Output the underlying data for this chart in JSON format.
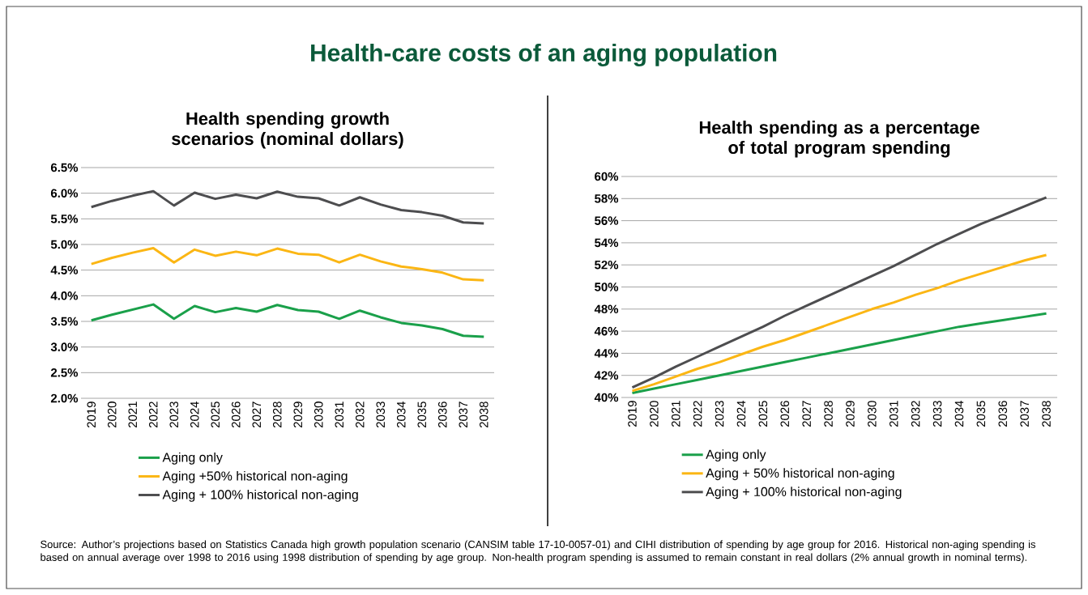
{
  "chart_data": [
    {
      "type": "other",
      "title": "Health-care costs of an aging population",
      "annotations": [
        "Source: Author’s projections based on Statistics Canada high growth population scenario (CANSIM table 17-10-0057-01) and CIHI distribution of spending by age group for 2016. Historical non-aging spending is based on annual average over 1998 to 2016 using 1998 distribution of spending by age group. Non-health program spending is assumed to remain constant in real dollars (2% annual growth in nominal terms)."
      ]
    },
    {
      "type": "line",
      "title": "Health spending growth scenarios (nominal dollars)",
      "categories": [
        "2019",
        "2020",
        "2021",
        "2022",
        "2023",
        "2024",
        "2025",
        "2026",
        "2027",
        "2028",
        "2029",
        "2030",
        "2031",
        "2032",
        "2033",
        "2034",
        "2035",
        "2036",
        "2037",
        "2038"
      ],
      "series": [
        {
          "name": "Aging only",
          "color": "#1aa04a",
          "values": [
            3.52,
            3.63,
            3.73,
            3.83,
            3.55,
            3.8,
            3.68,
            3.76,
            3.69,
            3.82,
            3.72,
            3.69,
            3.55,
            3.71,
            3.58,
            3.47,
            3.42,
            3.35,
            3.22,
            3.2
          ]
        },
        {
          "name": "Aging +50% historical non-aging",
          "color": "#fbb614",
          "values": [
            4.62,
            4.74,
            4.84,
            4.93,
            4.65,
            4.9,
            4.78,
            4.86,
            4.79,
            4.92,
            4.82,
            4.8,
            4.65,
            4.8,
            4.67,
            4.57,
            4.52,
            4.45,
            4.32,
            4.3
          ]
        },
        {
          "name": "Aging + 100% historical non-aging",
          "color": "#4d4d4f",
          "values": [
            5.73,
            5.85,
            5.95,
            6.04,
            5.76,
            6.01,
            5.89,
            5.97,
            5.9,
            6.03,
            5.93,
            5.9,
            5.76,
            5.92,
            5.78,
            5.67,
            5.63,
            5.56,
            5.43,
            5.41
          ]
        }
      ],
      "ylim": [
        2.0,
        6.5
      ],
      "yticks": [
        {
          "value": 2.0,
          "label": "2.0%"
        },
        {
          "value": 2.5,
          "label": "2.5%"
        },
        {
          "value": 3.0,
          "label": "3.0%"
        },
        {
          "value": 3.5,
          "label": "3.5%"
        },
        {
          "value": 4.0,
          "label": "4.0%"
        },
        {
          "value": 4.5,
          "label": "4.5%"
        },
        {
          "value": 5.0,
          "label": "5.0%"
        },
        {
          "value": 5.5,
          "label": "5.5%"
        },
        {
          "value": 6.0,
          "label": "6.0%"
        },
        {
          "value": 6.5,
          "label": "6.5%"
        }
      ],
      "grid": "y",
      "legend": "bottom"
    },
    {
      "type": "line",
      "title": "Health spending as a percentage of total program spending",
      "categories": [
        "2019",
        "2020",
        "2021",
        "2022",
        "2023",
        "2024",
        "2025",
        "2026",
        "2027",
        "2028",
        "2029",
        "2030",
        "2031",
        "2032",
        "2033",
        "2034",
        "2035",
        "2036",
        "2037",
        "2038"
      ],
      "series": [
        {
          "name": "Aging only",
          "color": "#1aa04a",
          "values": [
            40.4,
            40.8,
            41.2,
            41.6,
            42.0,
            42.4,
            42.8,
            43.2,
            43.6,
            44.0,
            44.4,
            44.8,
            45.2,
            45.6,
            46.0,
            46.4,
            46.7,
            47.0,
            47.3,
            47.6
          ]
        },
        {
          "name": "Aging + 50% historical non-aging",
          "color": "#fbb614",
          "values": [
            40.6,
            41.2,
            41.9,
            42.6,
            43.2,
            43.9,
            44.6,
            45.2,
            45.9,
            46.6,
            47.3,
            48.0,
            48.6,
            49.3,
            49.9,
            50.6,
            51.2,
            51.8,
            52.4,
            52.9
          ]
        },
        {
          "name": "Aging + 100% historical non-aging",
          "color": "#4d4d4f",
          "values": [
            40.9,
            41.8,
            42.8,
            43.7,
            44.6,
            45.5,
            46.4,
            47.4,
            48.3,
            49.2,
            50.1,
            51.0,
            51.9,
            52.9,
            53.9,
            54.8,
            55.7,
            56.5,
            57.3,
            58.1
          ]
        }
      ],
      "ylim": [
        40,
        60
      ],
      "yticks": [
        {
          "value": 40,
          "label": "40%"
        },
        {
          "value": 42,
          "label": "42%"
        },
        {
          "value": 44,
          "label": "44%"
        },
        {
          "value": 46,
          "label": "46%"
        },
        {
          "value": 48,
          "label": "48%"
        },
        {
          "value": 50,
          "label": "50%"
        },
        {
          "value": 52,
          "label": "52%"
        },
        {
          "value": 54,
          "label": "54%"
        },
        {
          "value": 56,
          "label": "56%"
        },
        {
          "value": 58,
          "label": "58%"
        },
        {
          "value": 60,
          "label": "60%"
        }
      ],
      "grid": "y",
      "legend": "bottom"
    }
  ]
}
